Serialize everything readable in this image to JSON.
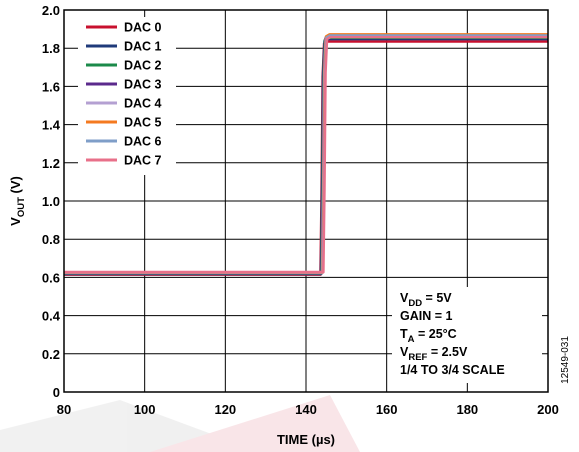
{
  "chart_data": {
    "type": "line",
    "xlabel": "TIME (µs)",
    "ylabel": {
      "main": "V",
      "sub": "OUT",
      "unit": " (V)"
    },
    "xlim": [
      80,
      200
    ],
    "ylim": [
      0,
      2.0
    ],
    "xticks": [
      80,
      100,
      120,
      140,
      160,
      180,
      200
    ],
    "yticks": [
      "0",
      "0.2",
      "0.4",
      "0.6",
      "0.8",
      "1.0",
      "1.2",
      "1.4",
      "1.6",
      "1.8",
      "2.0"
    ],
    "grid": true,
    "legend_placement": "top-left",
    "series": [
      {
        "name": "DAC 0",
        "color": "#c8102e",
        "low": 0.615,
        "high": 1.835,
        "t_step": 143.6
      },
      {
        "name": "DAC 1",
        "color": "#1f3a7a",
        "low": 0.618,
        "high": 1.848,
        "t_step": 143.7
      },
      {
        "name": "DAC 2",
        "color": "#1b8a4a",
        "low": 0.62,
        "high": 1.855,
        "t_step": 143.8
      },
      {
        "name": "DAC 3",
        "color": "#5b2a8c",
        "low": 0.622,
        "high": 1.862,
        "t_step": 143.9
      },
      {
        "name": "DAC 4",
        "color": "#b4a0d2",
        "low": 0.624,
        "high": 1.868,
        "t_step": 144.0
      },
      {
        "name": "DAC 5",
        "color": "#f47a20",
        "low": 0.626,
        "high": 1.872,
        "t_step": 144.1
      },
      {
        "name": "DAC 6",
        "color": "#7f9ec8",
        "low": 0.627,
        "high": 1.866,
        "t_step": 144.2
      },
      {
        "name": "DAC 7",
        "color": "#e8708a",
        "low": 0.628,
        "high": 1.858,
        "t_step": 144.3
      }
    ],
    "annotations": [
      {
        "main": "V",
        "sub": "DD",
        "rest": " = 5V"
      },
      {
        "main": "GAIN = 1",
        "sub": "",
        "rest": ""
      },
      {
        "main": "T",
        "sub": "A",
        "rest": " = 25°C"
      },
      {
        "main": "V",
        "sub": "REF",
        "rest": " = 2.5V"
      },
      {
        "main": "1/4 TO 3/4 SCALE",
        "sub": "",
        "rest": ""
      }
    ],
    "figure_id": "12549-031"
  }
}
